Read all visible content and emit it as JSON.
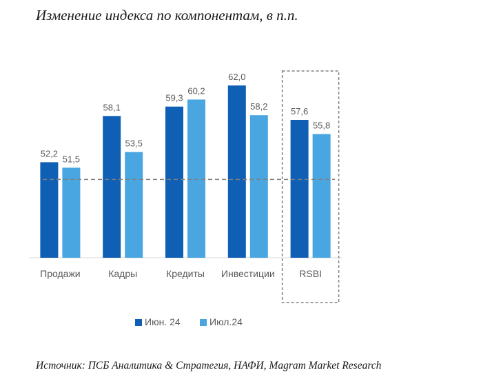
{
  "header": {
    "title": "Изменение индекса по компонентам, в п.п."
  },
  "footer": {
    "source": "Источник: ПСБ Аналитика & Стратегия, НАФИ, Magram Market Research"
  },
  "colors": {
    "series_1": "#0F5FB4",
    "series_2": "#4AA6E0",
    "reference_line": "#7f7f7f",
    "highlight_box": "#7f7f7f"
  },
  "chart_data": {
    "type": "bar",
    "categories": [
      "Продажи",
      "Кадры",
      "Кредиты",
      "Инвестиции",
      "RSBI"
    ],
    "series": [
      {
        "name": "Июн. 24",
        "values": [
          52.2,
          58.1,
          59.3,
          62.0,
          57.6
        ],
        "labels": [
          "52,2",
          "58,1",
          "59,3",
          "62,0",
          "57,6"
        ]
      },
      {
        "name": "Июл.24",
        "values": [
          51.5,
          53.5,
          60.2,
          58.2,
          55.8
        ],
        "labels": [
          "51,5",
          "53,5",
          "60,2",
          "58,2",
          "55,8"
        ]
      }
    ],
    "reference_line": 50,
    "ylim": [
      40,
      62
    ],
    "grid": false,
    "legend_position": "bottom",
    "highlighted_category": "RSBI",
    "title": "",
    "xlabel": "",
    "ylabel": ""
  }
}
